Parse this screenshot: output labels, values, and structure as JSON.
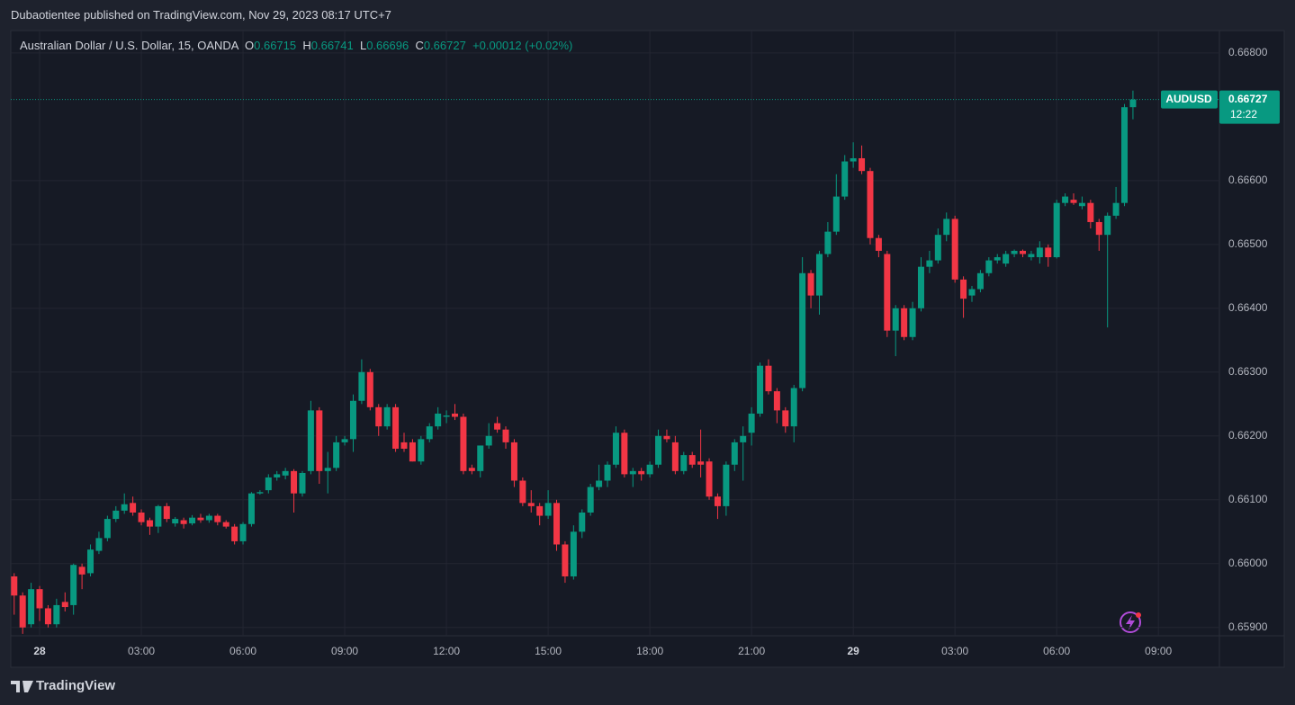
{
  "header": {
    "author_line": "Dubaotientee published on TradingView.com, Nov 29, 2023 08:17 UTC+7"
  },
  "footer": {
    "brand": "TradingView"
  },
  "chart_data": {
    "type": "candlestick",
    "title": "Australian Dollar / U.S. Dollar, 15, OANDA",
    "ohlc_legend": [
      {
        "key": "O",
        "value": "0.66715"
      },
      {
        "key": "H",
        "value": "0.66741"
      },
      {
        "key": "L",
        "value": "0.66696"
      },
      {
        "key": "C",
        "value": "0.66727"
      }
    ],
    "change": "+0.00012 (+0.02%)",
    "up_color": "#089981",
    "down_color": "#f23645",
    "grid": true,
    "x": [
      -0.75,
      -0.5,
      -0.25,
      0,
      0.25,
      0.5,
      0.75,
      1,
      1.25,
      1.5,
      1.75,
      2,
      2.25,
      2.5,
      2.75,
      3,
      3.25,
      3.5,
      3.75,
      4,
      4.25,
      4.5,
      4.75,
      5,
      5.25,
      5.5,
      5.75,
      6,
      6.25,
      6.5,
      6.75,
      7,
      7.25,
      7.5,
      7.75,
      8,
      8.25,
      8.5,
      8.75,
      9,
      9.25,
      9.5,
      9.75,
      10,
      10.25,
      10.5,
      10.75,
      11,
      11.25,
      11.5,
      11.75,
      12,
      12.25,
      12.5,
      12.75,
      13,
      13.25,
      13.5,
      13.75,
      14,
      14.25,
      14.5,
      14.75,
      15,
      15.25,
      15.5,
      15.75,
      16,
      16.25,
      16.5,
      16.75,
      17,
      17.25,
      17.5,
      17.75,
      18,
      18.25,
      18.5,
      18.75,
      19,
      19.25,
      19.5,
      19.75,
      20,
      20.25,
      20.5,
      20.75,
      21,
      21.25,
      21.5,
      21.75,
      22,
      22.25,
      22.5,
      22.75,
      23,
      23.25,
      23.5,
      23.75,
      24,
      24.25,
      24.5,
      24.75,
      25,
      25.25,
      25.5,
      25.75,
      26,
      26.25,
      26.5,
      26.75,
      27,
      27.25,
      27.5,
      27.75,
      28,
      28.25,
      28.5,
      28.75,
      29,
      29.25,
      29.5,
      29.75,
      30,
      30.25,
      30.5,
      30.75,
      31,
      31.25,
      31.5,
      31.75,
      32,
      32.25
    ],
    "xlim": [
      -0.85,
      34.8
    ],
    "xticks": [
      {
        "value": 0,
        "label": "28"
      },
      {
        "value": 3,
        "label": "03:00"
      },
      {
        "value": 6,
        "label": "06:00"
      },
      {
        "value": 9,
        "label": "09:00"
      },
      {
        "value": 12,
        "label": "12:00"
      },
      {
        "value": 15,
        "label": "15:00"
      },
      {
        "value": 18,
        "label": "18:00"
      },
      {
        "value": 21,
        "label": "21:00"
      },
      {
        "value": 24,
        "label": "29"
      },
      {
        "value": 27,
        "label": "03:00"
      },
      {
        "value": 30,
        "label": "06:00"
      },
      {
        "value": 33,
        "label": "09:00"
      }
    ],
    "ylim": [
      0.65887,
      0.66835
    ],
    "yticks": [
      {
        "value": 0.659,
        "label": "0.65900"
      },
      {
        "value": 0.66,
        "label": "0.66000"
      },
      {
        "value": 0.661,
        "label": "0.66100"
      },
      {
        "value": 0.662,
        "label": "0.66200"
      },
      {
        "value": 0.663,
        "label": "0.66300"
      },
      {
        "value": 0.664,
        "label": "0.66400"
      },
      {
        "value": 0.665,
        "label": "0.66500"
      },
      {
        "value": 0.666,
        "label": "0.66600"
      },
      {
        "value": 0.668,
        "label": "0.66800"
      }
    ],
    "series": [
      {
        "name": "AUDUSD",
        "last_price_label": "0.66727",
        "countdown": "12:22",
        "open": [
          0.6598,
          0.6595,
          0.65905,
          0.6596,
          0.6593,
          0.65905,
          0.6594,
          0.65935,
          0.65995,
          0.65985,
          0.6602,
          0.6604,
          0.6607,
          0.66083,
          0.66095,
          0.6608,
          0.66068,
          0.66058,
          0.6609,
          0.66063,
          0.66068,
          0.66063,
          0.66072,
          0.66068,
          0.66075,
          0.66065,
          0.66058,
          0.66035,
          0.66062,
          0.6611,
          0.66115,
          0.66135,
          0.66138,
          0.66145,
          0.6611,
          0.66145,
          0.6624,
          0.66145,
          0.6615,
          0.6619,
          0.66195,
          0.66255,
          0.663,
          0.66245,
          0.66215,
          0.66245,
          0.6619,
          0.6619,
          0.6616,
          0.66195,
          0.66215,
          0.6623,
          0.66235,
          0.6623,
          0.6615,
          0.66145,
          0.66185,
          0.6622,
          0.6621,
          0.6619,
          0.6613,
          0.66095,
          0.6609,
          0.66075,
          0.66095,
          0.6603,
          0.6598,
          0.6605,
          0.6608,
          0.6612,
          0.6613,
          0.66155,
          0.66205,
          0.6614,
          0.66145,
          0.6614,
          0.66155,
          0.662,
          0.6619,
          0.66145,
          0.6617,
          0.6616,
          0.6616,
          0.66105,
          0.6609,
          0.66155,
          0.6619,
          0.66205,
          0.66235,
          0.6631,
          0.6627,
          0.6624,
          0.66215,
          0.66275,
          0.66455,
          0.6642,
          0.66485,
          0.6652,
          0.66575,
          0.6663,
          0.66635,
          0.66615,
          0.6651,
          0.66485,
          0.66365,
          0.664,
          0.66355,
          0.664,
          0.66465,
          0.66475,
          0.66515,
          0.6654,
          0.66445,
          0.6642,
          0.6643,
          0.66455,
          0.66475,
          0.6647,
          0.66485,
          0.6649,
          0.6648,
          0.6648,
          0.66495,
          0.6648,
          0.66565,
          0.6657,
          0.6656,
          0.66565,
          0.66535,
          0.66515,
          0.66545,
          0.66565,
          0.66715
        ],
        "high": [
          0.65985,
          0.65955,
          0.6597,
          0.65965,
          0.65935,
          0.65945,
          0.65955,
          0.66,
          0.66,
          0.6603,
          0.6605,
          0.66075,
          0.6609,
          0.6611,
          0.66105,
          0.66085,
          0.66072,
          0.66092,
          0.66095,
          0.66073,
          0.66072,
          0.66076,
          0.66078,
          0.66078,
          0.66078,
          0.66068,
          0.66062,
          0.66065,
          0.66112,
          0.66115,
          0.6614,
          0.66145,
          0.6615,
          0.66148,
          0.66145,
          0.66255,
          0.66245,
          0.66175,
          0.662,
          0.662,
          0.66265,
          0.6632,
          0.66305,
          0.6625,
          0.6625,
          0.6625,
          0.66205,
          0.66195,
          0.662,
          0.6622,
          0.66245,
          0.6624,
          0.6625,
          0.66235,
          0.66155,
          0.66185,
          0.6622,
          0.6623,
          0.66215,
          0.66195,
          0.66135,
          0.66115,
          0.66095,
          0.66115,
          0.661,
          0.66035,
          0.6606,
          0.66085,
          0.66125,
          0.66155,
          0.6616,
          0.66215,
          0.6621,
          0.6615,
          0.6615,
          0.6616,
          0.6621,
          0.6621,
          0.662,
          0.66175,
          0.66175,
          0.6621,
          0.66165,
          0.6611,
          0.6616,
          0.66195,
          0.66215,
          0.66245,
          0.66315,
          0.6632,
          0.66275,
          0.66245,
          0.6628,
          0.6648,
          0.6646,
          0.6649,
          0.66535,
          0.6661,
          0.6664,
          0.6666,
          0.66655,
          0.6662,
          0.66515,
          0.6649,
          0.66405,
          0.66405,
          0.6641,
          0.6648,
          0.6649,
          0.66525,
          0.6655,
          0.66545,
          0.6645,
          0.66435,
          0.6646,
          0.6648,
          0.66485,
          0.6649,
          0.66492,
          0.66492,
          0.6649,
          0.66505,
          0.665,
          0.6657,
          0.6658,
          0.6658,
          0.66575,
          0.6657,
          0.6654,
          0.6655,
          0.6659,
          0.6672,
          0.66741
        ],
        "low": [
          0.6592,
          0.6589,
          0.659,
          0.6591,
          0.659,
          0.659,
          0.65925,
          0.6592,
          0.6596,
          0.6598,
          0.66015,
          0.66035,
          0.66065,
          0.66078,
          0.66075,
          0.6606,
          0.66045,
          0.66048,
          0.66065,
          0.66058,
          0.66055,
          0.6606,
          0.66064,
          0.66064,
          0.6606,
          0.66055,
          0.6603,
          0.6603,
          0.66058,
          0.66108,
          0.6611,
          0.6613,
          0.66132,
          0.6608,
          0.66105,
          0.6614,
          0.66125,
          0.6611,
          0.66145,
          0.66185,
          0.66175,
          0.6625,
          0.6624,
          0.662,
          0.6621,
          0.66175,
          0.66175,
          0.6616,
          0.66155,
          0.6619,
          0.6621,
          0.6622,
          0.66225,
          0.6614,
          0.6614,
          0.66135,
          0.6618,
          0.66205,
          0.6618,
          0.6612,
          0.6609,
          0.6608,
          0.6606,
          0.6607,
          0.6602,
          0.6597,
          0.65975,
          0.6604,
          0.66075,
          0.66115,
          0.6612,
          0.6615,
          0.66135,
          0.6612,
          0.6613,
          0.66135,
          0.6615,
          0.6619,
          0.6614,
          0.6614,
          0.6615,
          0.66135,
          0.661,
          0.6607,
          0.66075,
          0.66145,
          0.6613,
          0.66185,
          0.6623,
          0.66265,
          0.6622,
          0.66205,
          0.6619,
          0.6627,
          0.664,
          0.6639,
          0.6648,
          0.66515,
          0.6657,
          0.6662,
          0.6661,
          0.665,
          0.6648,
          0.66355,
          0.66325,
          0.6635,
          0.6635,
          0.66395,
          0.66455,
          0.6647,
          0.66505,
          0.6644,
          0.66385,
          0.6641,
          0.66425,
          0.6645,
          0.6647,
          0.66465,
          0.6648,
          0.6648,
          0.66475,
          0.6647,
          0.66465,
          0.66478,
          0.6656,
          0.66562,
          0.66555,
          0.66525,
          0.6649,
          0.6637,
          0.6654,
          0.6656,
          0.66696
        ],
        "close": [
          0.6595,
          0.659,
          0.6596,
          0.6593,
          0.65905,
          0.65935,
          0.65932,
          0.65998,
          0.65983,
          0.66022,
          0.6604,
          0.6607,
          0.66083,
          0.66093,
          0.6608,
          0.66065,
          0.66058,
          0.6609,
          0.6607,
          0.6607,
          0.66062,
          0.66072,
          0.66068,
          0.66075,
          0.66065,
          0.66058,
          0.66035,
          0.66062,
          0.6611,
          0.66112,
          0.66135,
          0.6614,
          0.66145,
          0.6611,
          0.66142,
          0.6624,
          0.66145,
          0.6615,
          0.6619,
          0.66195,
          0.66255,
          0.663,
          0.66245,
          0.66215,
          0.66245,
          0.6618,
          0.6618,
          0.6616,
          0.66195,
          0.66215,
          0.66235,
          0.66232,
          0.6623,
          0.66145,
          0.66145,
          0.66185,
          0.662,
          0.6621,
          0.6619,
          0.6613,
          0.66095,
          0.6609,
          0.66075,
          0.66095,
          0.6603,
          0.6598,
          0.6605,
          0.6608,
          0.6612,
          0.6613,
          0.66155,
          0.66205,
          0.6614,
          0.66145,
          0.6614,
          0.66155,
          0.662,
          0.66195,
          0.66145,
          0.6617,
          0.66155,
          0.66155,
          0.66105,
          0.6609,
          0.66155,
          0.6619,
          0.662,
          0.66235,
          0.6631,
          0.6627,
          0.6624,
          0.66215,
          0.66275,
          0.66455,
          0.6642,
          0.66485,
          0.6652,
          0.66575,
          0.6663,
          0.66635,
          0.66615,
          0.6651,
          0.6649,
          0.66365,
          0.664,
          0.66355,
          0.664,
          0.66465,
          0.66475,
          0.66515,
          0.6654,
          0.66445,
          0.66415,
          0.6643,
          0.66455,
          0.66475,
          0.6648,
          0.66485,
          0.6649,
          0.66485,
          0.66485,
          0.66495,
          0.6648,
          0.66565,
          0.66575,
          0.66565,
          0.66565,
          0.66535,
          0.66515,
          0.66545,
          0.66565,
          0.66715,
          0.66727
        ]
      }
    ]
  }
}
